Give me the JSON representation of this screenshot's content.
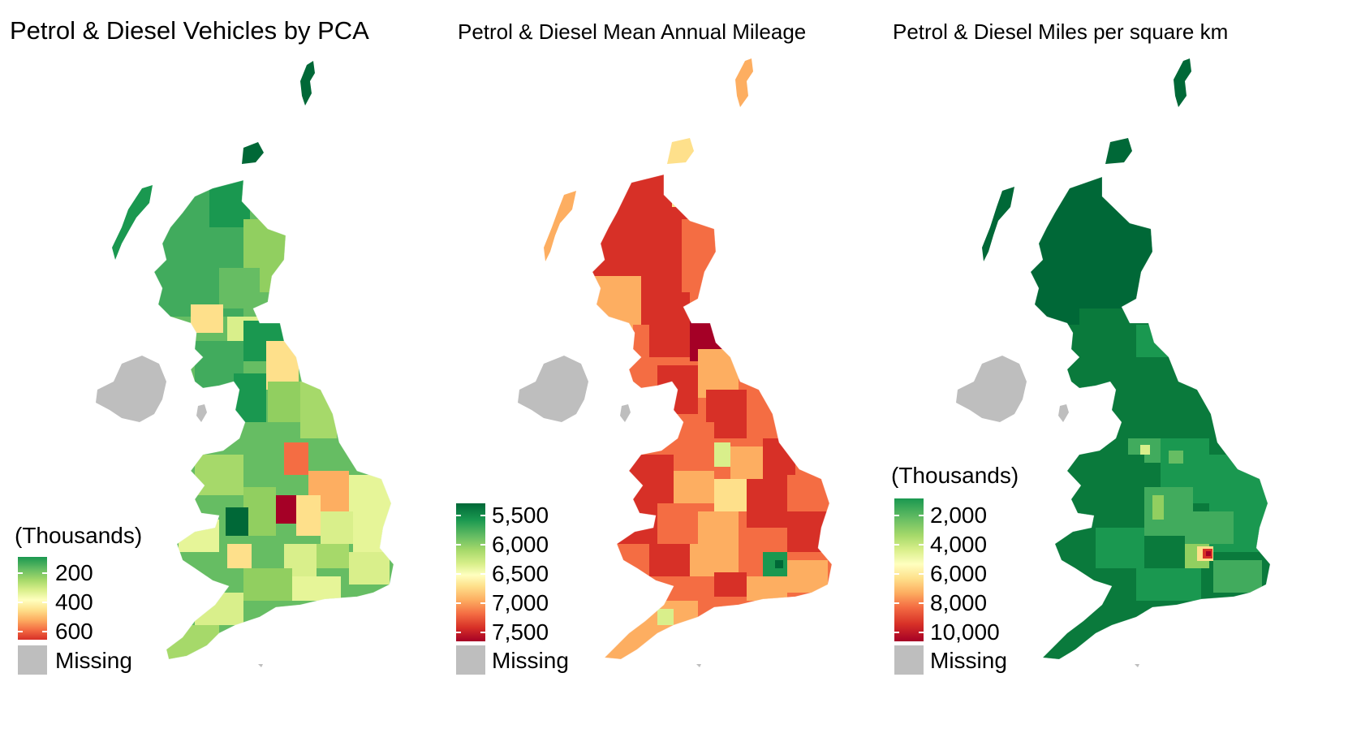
{
  "colors": {
    "missing": "#bebebe",
    "scale_green_dark": "#006837",
    "scale_green": "#1a9850",
    "scale_green_light": "#91cf60",
    "scale_yellow_green": "#d9ef8b",
    "scale_yellow": "#ffffbf",
    "scale_orange_light": "#fee08b",
    "scale_orange": "#fc8d59",
    "scale_red": "#d73027",
    "scale_red_dark": "#a50026"
  },
  "maps": [
    {
      "title": "Petrol & Diesel Vehicles by PCA",
      "legend": {
        "heading": "(Thousands)",
        "labels": [
          "200",
          "400",
          "600"
        ],
        "missing_label": "Missing",
        "reversed": false
      }
    },
    {
      "title": "Petrol & Diesel Mean Annual Mileage",
      "legend": {
        "heading": "",
        "labels": [
          "5,500",
          "6,000",
          "6,500",
          "7,000",
          "7,500"
        ],
        "missing_label": "Missing",
        "reversed": false
      }
    },
    {
      "title": "Petrol & Diesel Miles per square km",
      "legend": {
        "heading": "(Thousands)",
        "labels": [
          "2,000",
          "4,000",
          "6,000",
          "8,000",
          "10,000"
        ],
        "missing_label": "Missing",
        "reversed": false
      }
    }
  ]
}
